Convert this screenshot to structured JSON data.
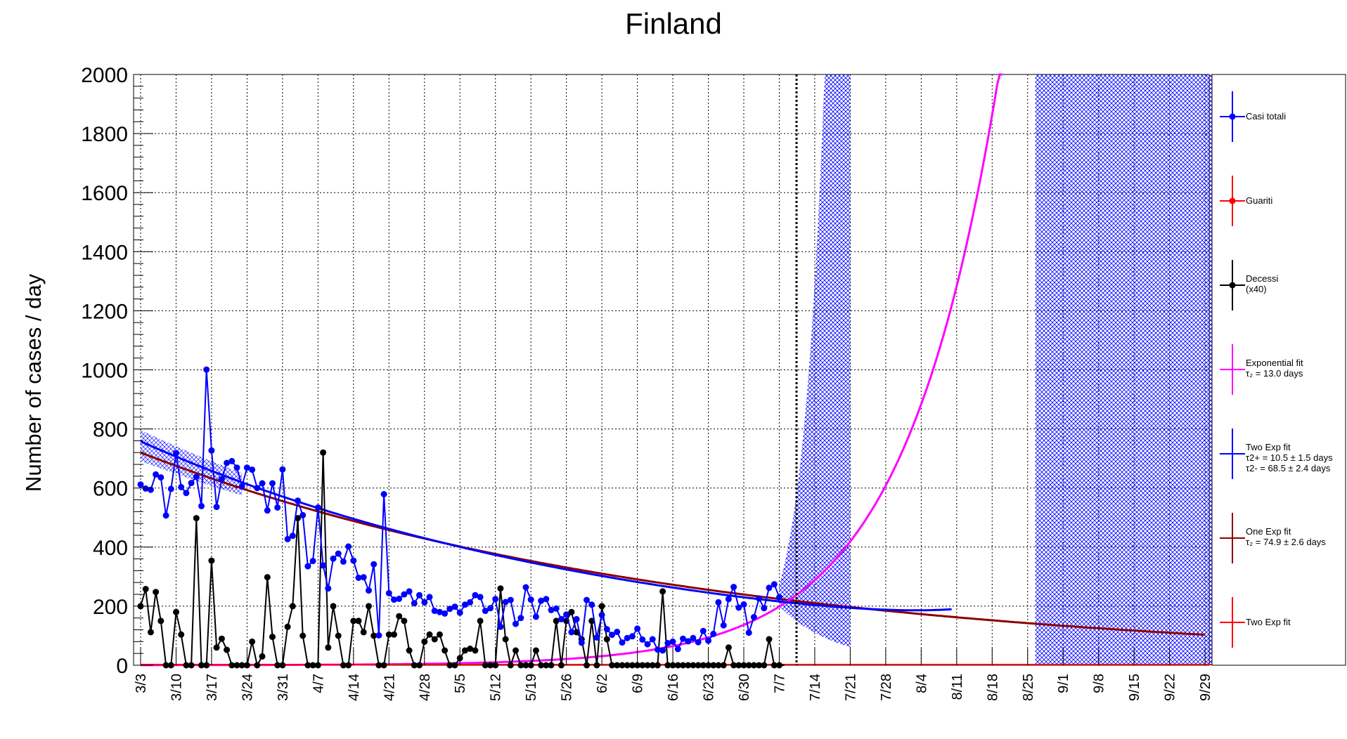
{
  "chart_data": {
    "type": "line",
    "title": "Finland",
    "ylabel": "Number of cases / day",
    "ylim": [
      0,
      2000
    ],
    "yticks": [
      0,
      200,
      400,
      600,
      800,
      1000,
      1200,
      1400,
      1600,
      1800,
      2000
    ],
    "xticks": [
      "3/3",
      "3/10",
      "3/17",
      "3/24",
      "3/31",
      "4/7",
      "4/14",
      "4/21",
      "4/28",
      "5/5",
      "5/12",
      "5/19",
      "5/26",
      "6/2",
      "6/9",
      "6/16",
      "6/23",
      "6/30",
      "7/7",
      "7/14",
      "7/21",
      "7/28",
      "8/4",
      "8/11",
      "8/18",
      "8/25",
      "9/1",
      "9/8",
      "9/15",
      "9/22",
      "9/29"
    ],
    "grid": true,
    "legend_position": "right",
    "colors": {
      "casi": "#0000ff",
      "guariti": "#ff0000",
      "decessi": "#000000",
      "exp": "#ff00ff",
      "twoexp": "#0000ff",
      "oneexp": "#8b0000",
      "twoexp2": "#ff0000"
    },
    "series": [
      {
        "name": "Casi totali",
        "day_start": 0,
        "values": [
          612,
          598,
          594,
          646,
          636,
          507,
          597,
          718,
          603,
          583,
          617,
          638,
          539,
          1001,
          727,
          536,
          630,
          685,
          691,
          669,
          606,
          669,
          662,
          600,
          616,
          524,
          616,
          534,
          663,
          427,
          438,
          557,
          508,
          335,
          353,
          534,
          338,
          260,
          361,
          378,
          351,
          402,
          354,
          296,
          298,
          253,
          342,
          101,
          579,
          244,
          222,
          225,
          240,
          250,
          210,
          237,
          213,
          231,
          184,
          180,
          175,
          191,
          198,
          178,
          205,
          213,
          237,
          231,
          184,
          193,
          224,
          130,
          214,
          221,
          140,
          160,
          264,
          222,
          164,
          218,
          224,
          187,
          192,
          156,
          172,
          112,
          156,
          76,
          221,
          205,
          94,
          170,
          122,
          103,
          113,
          77,
          92,
          98,
          124,
          87,
          71,
          88,
          53,
          50,
          75,
          80,
          55,
          90,
          81,
          92,
          78,
          116,
          83,
          106,
          213,
          135,
          224,
          265,
          195,
          206,
          110,
          163,
          226,
          193,
          262,
          274,
          230
        ]
      },
      {
        "name": "Decessi (x40)",
        "day_start": 0,
        "values": [
          200,
          258,
          112,
          248,
          150,
          0,
          0,
          180,
          104,
          0,
          0,
          498,
          0,
          0,
          354,
          60,
          90,
          52,
          0,
          0,
          0,
          0,
          80,
          0,
          30,
          298,
          96,
          0,
          0,
          130,
          200,
          498,
          100,
          0,
          0,
          0,
          720,
          60,
          200,
          100,
          0,
          0,
          150,
          150,
          112,
          200,
          100,
          0,
          0,
          104,
          104,
          166,
          150,
          50,
          0,
          0,
          80,
          104,
          88,
          104,
          50,
          0,
          0,
          24,
          50,
          56,
          50,
          150,
          0,
          0,
          0,
          260,
          88,
          0,
          50,
          0,
          0,
          0,
          50,
          0,
          0,
          0,
          150,
          0,
          150,
          180,
          112,
          88,
          0,
          150,
          0,
          200,
          88,
          0,
          0,
          0,
          0,
          0,
          0,
          0,
          0,
          0,
          0,
          250,
          0,
          0,
          0,
          0,
          0,
          0,
          0,
          0,
          0,
          0,
          0,
          0,
          60,
          0,
          0,
          0,
          0,
          0,
          0,
          0,
          88,
          0,
          0
        ]
      }
    ],
    "legend": [
      {
        "label": "Casi totali",
        "sub": "",
        "sub2": "",
        "color": "#0000ff",
        "marker": "circle"
      },
      {
        "label": "Guariti",
        "sub": "",
        "sub2": "",
        "color": "#ff0000",
        "marker": "circle"
      },
      {
        "label": "Decessi",
        "sub": "(x40)",
        "sub2": "",
        "color": "#000000",
        "marker": "circle"
      },
      {
        "label": "Exponential fit",
        "sub": "τ₂ = 13.0  days",
        "sub2": "",
        "color": "#ff00ff",
        "marker": "none"
      },
      {
        "label": "Two Exp fit",
        "sub": "τ2+ = 10.5 ± 1.5 days",
        "sub2": "τ2- = 68.5 ± 2.4 days",
        "color": "#0000ff",
        "marker": "none"
      },
      {
        "label": "One Exp fit",
        "sub": "τ₂ = 74.9  ± 2.6 days",
        "sub2": "",
        "color": "#8b0000",
        "marker": "none"
      },
      {
        "label": "Two Exp fit",
        "sub": "",
        "sub2": "",
        "color": "#ff0000",
        "marker": "none"
      }
    ]
  }
}
